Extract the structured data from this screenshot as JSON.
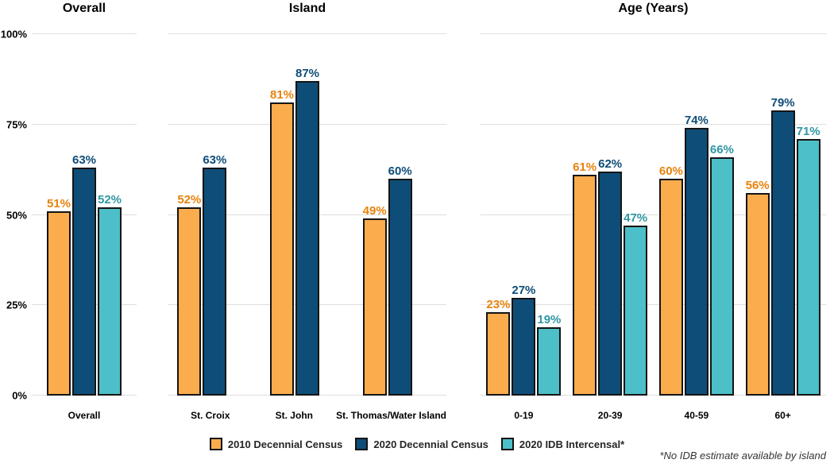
{
  "figure": {
    "footnote": "*No IDB estimate available by island"
  },
  "chart_data": {
    "type": "bar",
    "title": "",
    "xlabel": "",
    "ylabel": "",
    "ylim": [
      0,
      100
    ],
    "yticks": [
      0,
      25,
      50,
      75,
      100
    ],
    "ytick_suffix": "%",
    "grid": true,
    "legend_position": "bottom-center",
    "series": [
      {
        "name": "2010 Decennial Census",
        "color": "#FBAC4D",
        "label_color": "#E8820D"
      },
      {
        "name": "2020 Decennial Census",
        "color": "#0E4D78",
        "label_color": "#0E4D78"
      },
      {
        "name": "2020 IDB Intercensal*",
        "color": "#4CBFC8",
        "label_color": "#2E97A3"
      }
    ],
    "panels": [
      {
        "title": "Overall",
        "categories": [
          "Overall"
        ],
        "values": [
          [
            51
          ],
          [
            63
          ],
          [
            52
          ]
        ]
      },
      {
        "title": "Island",
        "categories": [
          "St. Croix",
          "St. John",
          "St. Thomas/Water Island"
        ],
        "values": [
          [
            52,
            81,
            49
          ],
          [
            63,
            87,
            60
          ],
          [
            null,
            null,
            null
          ]
        ]
      },
      {
        "title": "Age (Years)",
        "categories": [
          "0-19",
          "20-39",
          "40-59",
          "60+"
        ],
        "values": [
          [
            23,
            61,
            60,
            56
          ],
          [
            27,
            62,
            74,
            79
          ],
          [
            19,
            47,
            66,
            71
          ]
        ]
      }
    ]
  }
}
